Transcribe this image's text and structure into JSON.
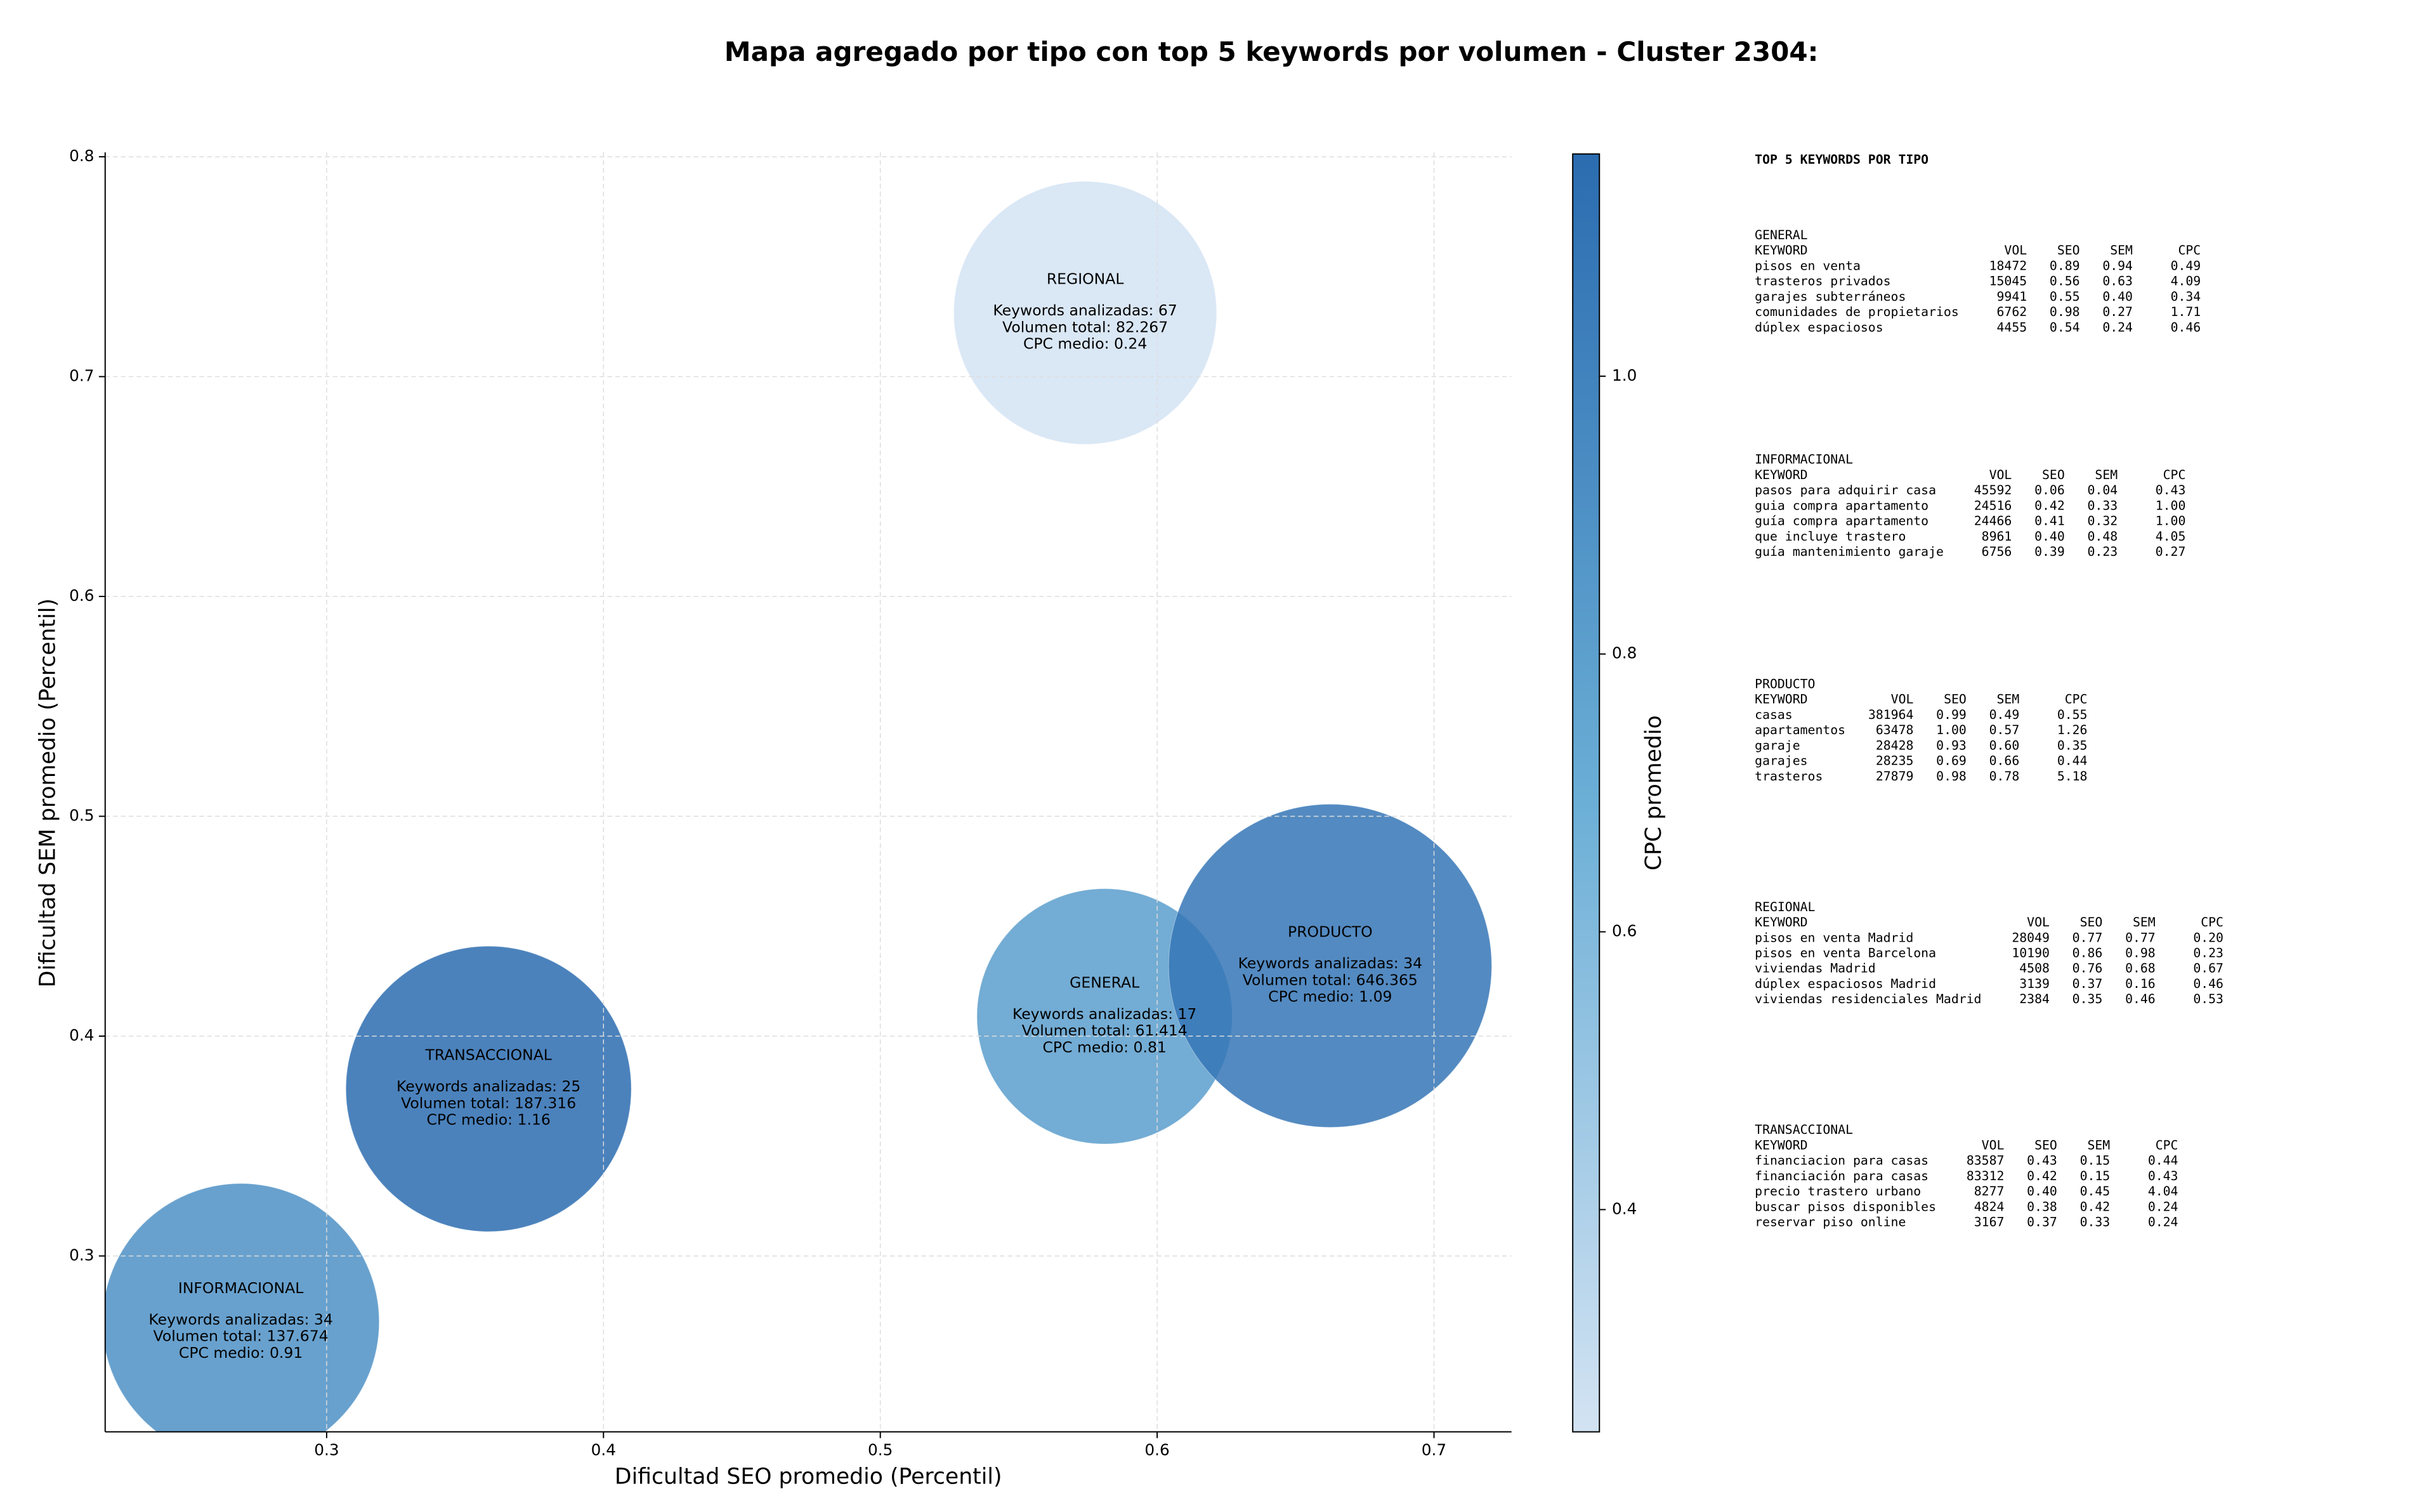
{
  "chart_data": {
    "type": "bubble",
    "title": "Mapa agregado por tipo con top 5 keywords por volumen - Cluster 2304:",
    "x_label": "Dificultad SEO promedio (Percentil)",
    "y_label": "Dificultad SEM promedio (Percentil)",
    "xlim": [
      0.22,
      0.728
    ],
    "ylim": [
      0.22,
      0.802
    ],
    "xticks": [
      0.3,
      0.4,
      0.5,
      0.6,
      0.7
    ],
    "yticks": [
      0.3,
      0.4,
      0.5,
      0.6,
      0.7,
      0.8
    ],
    "grid": true,
    "alpha": 0.85,
    "colorbar": {
      "label": "CPC promedio",
      "lim": [
        0.24,
        1.16
      ],
      "ticks": [
        0.4,
        0.6,
        0.8,
        {
          "value": 1,
          "label": "1.0"
        }
      ],
      "colors": [
        "#d3e3f3",
        "#6aaed6",
        "#2b6cb0"
      ]
    },
    "points": [
      {
        "name": "GENERAL",
        "x": 0.581,
        "y": 0.409,
        "volume": 61414,
        "keywords": 17,
        "cpc": 0.81,
        "annotation": [
          "Keywords analizadas: 17",
          "Volumen total: 61.414",
          "CPC medio: 0.81"
        ]
      },
      {
        "name": "INFORMACIONAL",
        "x": 0.269,
        "y": 0.27,
        "volume": 137674,
        "keywords": 34,
        "cpc": 0.91,
        "annotation": [
          "Keywords analizadas: 34",
          "Volumen total: 137.674",
          "CPC medio: 0.91"
        ]
      },
      {
        "name": "PRODUCTO",
        "x": 0.6625,
        "y": 0.432,
        "volume": 646365,
        "keywords": 34,
        "cpc": 1.09,
        "annotation": [
          "Keywords analizadas: 34",
          "Volumen total: 646.365",
          "CPC medio: 1.09"
        ]
      },
      {
        "name": "REGIONAL",
        "x": 0.574,
        "y": 0.729,
        "volume": 82267,
        "keywords": 67,
        "cpc": 0.24,
        "annotation": [
          "Keywords analizadas: 67",
          "Volumen total: 82.267",
          "CPC medio: 0.24"
        ]
      },
      {
        "name": "TRANSACCIONAL",
        "x": 0.3585,
        "y": 0.376,
        "volume": 187316,
        "keywords": 25,
        "cpc": 1.16,
        "annotation": [
          "Keywords analizadas: 25",
          "Volumen total: 187.316",
          "CPC medio: 1.16"
        ]
      }
    ]
  },
  "side_panel": {
    "title": "TOP 5 KEYWORDS POR TIPO",
    "sections": [
      {
        "name": "GENERAL",
        "columns": [
          "KEYWORD",
          "VOL",
          "SEO",
          "SEM",
          "CPC"
        ],
        "rows": [
          [
            "pisos en venta",
            "18472",
            "0.89",
            "0.94",
            "0.49"
          ],
          [
            "trasteros privados",
            "15045",
            "0.56",
            "0.63",
            "4.09"
          ],
          [
            "garajes subterráneos",
            "9941",
            "0.55",
            "0.40",
            "0.34"
          ],
          [
            "comunidades de propietarios",
            "6762",
            "0.98",
            "0.27",
            "1.71"
          ],
          [
            "dúplex espaciosos",
            "4455",
            "0.54",
            "0.24",
            "0.46"
          ]
        ]
      },
      {
        "name": "INFORMACIONAL",
        "columns": [
          "KEYWORD",
          "VOL",
          "SEO",
          "SEM",
          "CPC"
        ],
        "rows": [
          [
            "pasos para adquirir casa",
            "45592",
            "0.06",
            "0.04",
            "0.43"
          ],
          [
            "guia compra apartamento",
            "24516",
            "0.42",
            "0.33",
            "1.00"
          ],
          [
            "guía compra apartamento",
            "24466",
            "0.41",
            "0.32",
            "1.00"
          ],
          [
            "que incluye trastero",
            "8961",
            "0.40",
            "0.48",
            "4.05"
          ],
          [
            "guía mantenimiento garaje",
            "6756",
            "0.39",
            "0.23",
            "0.27"
          ]
        ]
      },
      {
        "name": "PRODUCTO",
        "columns": [
          "KEYWORD",
          "VOL",
          "SEO",
          "SEM",
          "CPC"
        ],
        "rows": [
          [
            "casas",
            "381964",
            "0.99",
            "0.49",
            "0.55"
          ],
          [
            "apartamentos",
            "63478",
            "1.00",
            "0.57",
            "1.26"
          ],
          [
            "garaje",
            "28428",
            "0.93",
            "0.60",
            "0.35"
          ],
          [
            "garajes",
            "28235",
            "0.69",
            "0.66",
            "0.44"
          ],
          [
            "trasteros",
            "27879",
            "0.98",
            "0.78",
            "5.18"
          ]
        ]
      },
      {
        "name": "REGIONAL",
        "columns": [
          "KEYWORD",
          "VOL",
          "SEO",
          "SEM",
          "CPC"
        ],
        "rows": [
          [
            "pisos en venta Madrid",
            "28049",
            "0.77",
            "0.77",
            "0.20"
          ],
          [
            "pisos en venta Barcelona",
            "10190",
            "0.86",
            "0.98",
            "0.23"
          ],
          [
            "viviendas Madrid",
            "4508",
            "0.76",
            "0.68",
            "0.67"
          ],
          [
            "dúplex espaciosos Madrid",
            "3139",
            "0.37",
            "0.16",
            "0.46"
          ],
          [
            "viviendas residenciales Madrid",
            "2384",
            "0.35",
            "0.46",
            "0.53"
          ]
        ]
      },
      {
        "name": "TRANSACCIONAL",
        "columns": [
          "KEYWORD",
          "VOL",
          "SEO",
          "SEM",
          "CPC"
        ],
        "rows": [
          [
            "financiacion para casas",
            "83587",
            "0.43",
            "0.15",
            "0.44"
          ],
          [
            "financiación para casas",
            "83312",
            "0.42",
            "0.15",
            "0.43"
          ],
          [
            "precio trastero urbano",
            "8277",
            "0.40",
            "0.45",
            "4.04"
          ],
          [
            "buscar pisos disponibles",
            "4824",
            "0.38",
            "0.42",
            "0.24"
          ],
          [
            "reservar piso online",
            "3167",
            "0.37",
            "0.33",
            "0.24"
          ]
        ]
      }
    ]
  }
}
